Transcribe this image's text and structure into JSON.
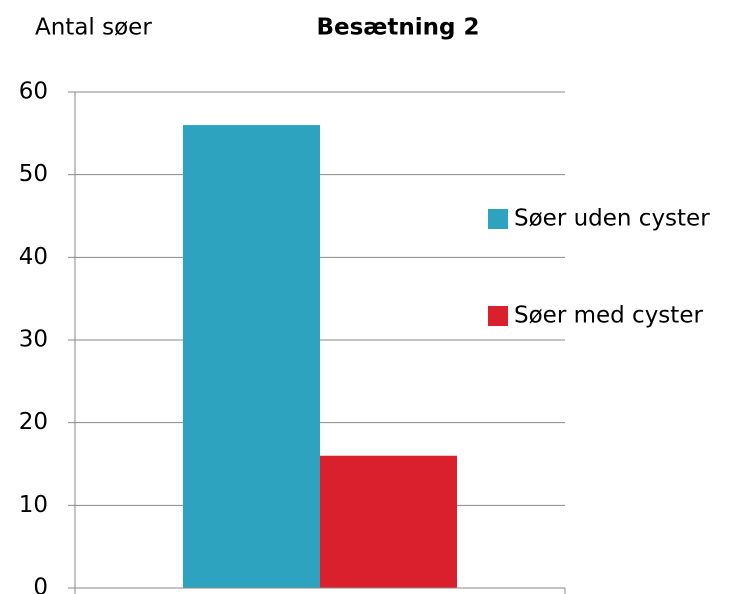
{
  "chart_data": {
    "type": "bar",
    "title": "Besætning 2",
    "y_label": "Antal søer",
    "categories": [
      null
    ],
    "series": [
      {
        "name": "Søer uden cyster",
        "color": "#2ea3c0",
        "values": [
          56
        ]
      },
      {
        "name": "Søer med cyster",
        "color": "#da202c",
        "values": [
          16
        ]
      }
    ],
    "ylim": [
      0,
      60
    ],
    "yticks": [
      0,
      10,
      20,
      30,
      40,
      50,
      60
    ],
    "grid": true,
    "legend": "right"
  }
}
